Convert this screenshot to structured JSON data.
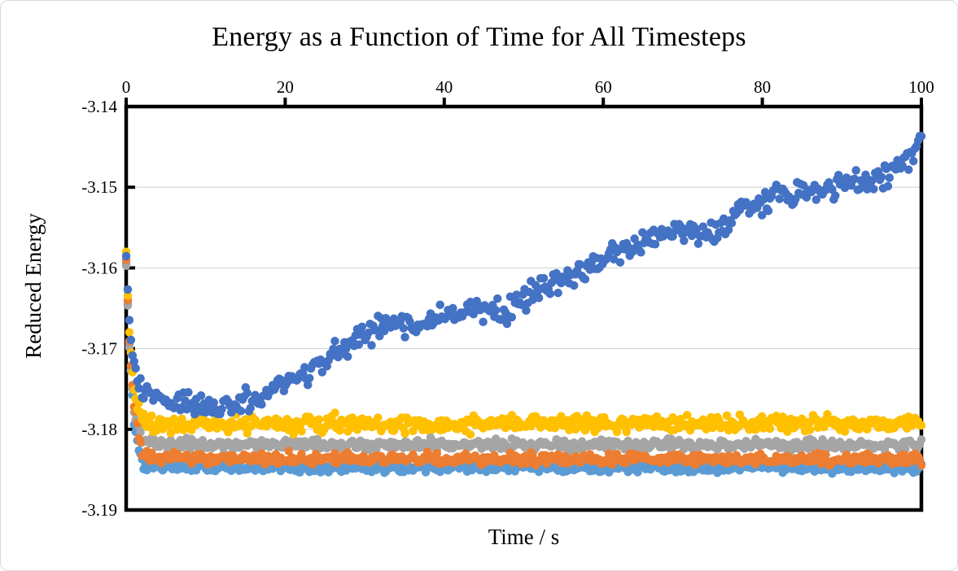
{
  "window": {
    "background_color": "#ffffff",
    "frame_border_color": "#d9d9d9"
  },
  "chart_data": {
    "type": "scatter",
    "title": "Energy as a Function of Time for All Timesteps",
    "xlabel": "Time / s",
    "ylabel": "Reduced Energy",
    "legend": "none",
    "grid": "horizontal",
    "gridline_color": "#d9d9d9",
    "axis_color": "#000000",
    "plot_border_width": 4.5,
    "marker_diameter": 10.5,
    "x_axis": {
      "min": 0,
      "max": 100,
      "ticks": [
        0,
        20,
        40,
        60,
        80,
        100
      ],
      "position": "top",
      "decimals": 0
    },
    "y_axis": {
      "min": -3.19,
      "max": -3.14,
      "ticks": [
        -3.14,
        -3.15,
        -3.16,
        -3.17,
        -3.18,
        -3.19
      ],
      "position": "left",
      "decimals": 2
    },
    "series": [
      {
        "name": "light-blue-flat",
        "color": "#5B9BD5",
        "points_count": 500,
        "seed": 101,
        "spread": 0.0009,
        "anchors": [
          [
            0,
            -3.1595
          ],
          [
            0.4,
            -3.1695
          ],
          [
            1,
            -3.179
          ],
          [
            2,
            -3.1842
          ],
          [
            4,
            -3.1847
          ],
          [
            100,
            -3.1848
          ]
        ]
      },
      {
        "name": "gray-flat",
        "color": "#A5A5A5",
        "points_count": 500,
        "seed": 102,
        "spread": 0.001,
        "anchors": [
          [
            0,
            -3.1598
          ],
          [
            0.4,
            -3.17
          ],
          [
            1,
            -3.178
          ],
          [
            2,
            -3.1812
          ],
          [
            4,
            -3.1818
          ],
          [
            100,
            -3.182
          ]
        ]
      },
      {
        "name": "orange-flat",
        "color": "#ED7D31",
        "points_count": 500,
        "seed": 103,
        "spread": 0.001,
        "anchors": [
          [
            0,
            -3.159
          ],
          [
            0.4,
            -3.169
          ],
          [
            1,
            -3.177
          ],
          [
            2,
            -3.183
          ],
          [
            4,
            -3.1836
          ],
          [
            100,
            -3.1837
          ]
        ]
      },
      {
        "name": "gold-flat",
        "color": "#FFC000",
        "points_count": 500,
        "seed": 104,
        "spread": 0.0015,
        "anchors": [
          [
            0,
            -3.1583
          ],
          [
            0.4,
            -3.168
          ],
          [
            1,
            -3.1757
          ],
          [
            2,
            -3.1788
          ],
          [
            4,
            -3.1793
          ],
          [
            100,
            -3.1793
          ]
        ]
      },
      {
        "name": "blue-rising",
        "color": "#4472C4",
        "points_count": 500,
        "seed": 105,
        "spread": 0.0021,
        "anchors": [
          [
            0,
            -3.1585
          ],
          [
            0.4,
            -3.167
          ],
          [
            1,
            -3.173
          ],
          [
            2,
            -3.1752
          ],
          [
            5,
            -3.1763
          ],
          [
            9,
            -3.1769
          ],
          [
            13,
            -3.1773
          ],
          [
            17,
            -3.1759
          ],
          [
            20,
            -3.1742
          ],
          [
            24,
            -3.1722
          ],
          [
            27,
            -3.1702
          ],
          [
            30,
            -3.1684
          ],
          [
            33,
            -3.1666
          ],
          [
            36,
            -3.1679
          ],
          [
            40,
            -3.1657
          ],
          [
            44,
            -3.1647
          ],
          [
            47,
            -3.1659
          ],
          [
            50,
            -3.1637
          ],
          [
            54,
            -3.1618
          ],
          [
            58,
            -3.1601
          ],
          [
            62,
            -3.158
          ],
          [
            66,
            -3.1562
          ],
          [
            70,
            -3.1553
          ],
          [
            74,
            -3.1563
          ],
          [
            77,
            -3.1529
          ],
          [
            80,
            -3.1516
          ],
          [
            84,
            -3.1509
          ],
          [
            88,
            -3.15
          ],
          [
            92,
            -3.1497
          ],
          [
            95,
            -3.1489
          ],
          [
            97,
            -3.1478
          ],
          [
            99,
            -3.1452
          ],
          [
            100,
            -3.143
          ]
        ]
      }
    ]
  }
}
